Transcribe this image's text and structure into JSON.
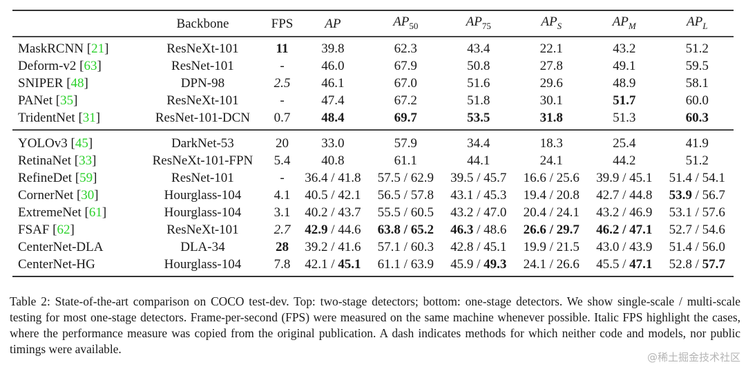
{
  "table": {
    "headers": [
      {
        "text": ""
      },
      {
        "text": "Backbone"
      },
      {
        "text": "FPS"
      },
      {
        "base": "AP"
      },
      {
        "base": "AP",
        "sub": "50",
        "sub_italic": false
      },
      {
        "base": "AP",
        "sub": "75",
        "sub_italic": false
      },
      {
        "base": "AP",
        "sub": "S",
        "sub_italic": true
      },
      {
        "base": "AP",
        "sub": "M",
        "sub_italic": true
      },
      {
        "base": "AP",
        "sub": "L",
        "sub_italic": true
      }
    ],
    "groups": [
      {
        "name": "two-stage",
        "rows": [
          {
            "method": "MaskRCNN",
            "ref": "21",
            "backbone": "ResNeXt-101",
            "fps": {
              "t": "11",
              "b": true
            },
            "cells": [
              [
                {
                  "t": "39.8"
                }
              ],
              [
                {
                  "t": "62.3"
                }
              ],
              [
                {
                  "t": "43.4"
                }
              ],
              [
                {
                  "t": "22.1"
                }
              ],
              [
                {
                  "t": "43.2"
                }
              ],
              [
                {
                  "t": "51.2"
                }
              ]
            ]
          },
          {
            "method": "Deform-v2",
            "ref": "63",
            "backbone": "ResNet-101",
            "fps": {
              "t": "-"
            },
            "cells": [
              [
                {
                  "t": "46.0"
                }
              ],
              [
                {
                  "t": "67.9"
                }
              ],
              [
                {
                  "t": "50.8"
                }
              ],
              [
                {
                  "t": "27.8"
                }
              ],
              [
                {
                  "t": "49.1"
                }
              ],
              [
                {
                  "t": "59.5"
                }
              ]
            ]
          },
          {
            "method": "SNIPER",
            "ref": "48",
            "backbone": "DPN-98",
            "fps": {
              "t": "2.5",
              "i": true
            },
            "cells": [
              [
                {
                  "t": "46.1"
                }
              ],
              [
                {
                  "t": "67.0"
                }
              ],
              [
                {
                  "t": "51.6"
                }
              ],
              [
                {
                  "t": "29.6"
                }
              ],
              [
                {
                  "t": "48.9"
                }
              ],
              [
                {
                  "t": "58.1"
                }
              ]
            ]
          },
          {
            "method": "PANet",
            "ref": "35",
            "backbone": "ResNeXt-101",
            "fps": {
              "t": "-"
            },
            "cells": [
              [
                {
                  "t": "47.4"
                }
              ],
              [
                {
                  "t": "67.2"
                }
              ],
              [
                {
                  "t": "51.8"
                }
              ],
              [
                {
                  "t": "30.1"
                }
              ],
              [
                {
                  "t": "51.7",
                  "b": true
                }
              ],
              [
                {
                  "t": "60.0"
                }
              ]
            ]
          },
          {
            "method": "TridentNet",
            "ref": "31",
            "backbone": "ResNet-101-DCN",
            "fps": {
              "t": "0.7"
            },
            "cells": [
              [
                {
                  "t": "48.4",
                  "b": true
                }
              ],
              [
                {
                  "t": "69.7",
                  "b": true
                }
              ],
              [
                {
                  "t": "53.5",
                  "b": true
                }
              ],
              [
                {
                  "t": "31.8",
                  "b": true
                }
              ],
              [
                {
                  "t": "51.3"
                }
              ],
              [
                {
                  "t": "60.3",
                  "b": true
                }
              ]
            ]
          }
        ]
      },
      {
        "name": "one-stage",
        "rows": [
          {
            "method": "YOLOv3",
            "ref": "45",
            "backbone": "DarkNet-53",
            "fps": {
              "t": "20"
            },
            "cells": [
              [
                {
                  "t": "33.0"
                }
              ],
              [
                {
                  "t": "57.9"
                }
              ],
              [
                {
                  "t": "34.4"
                }
              ],
              [
                {
                  "t": "18.3"
                }
              ],
              [
                {
                  "t": "25.4"
                }
              ],
              [
                {
                  "t": "41.9"
                }
              ]
            ]
          },
          {
            "method": "RetinaNet",
            "ref": "33",
            "backbone": "ResNeXt-101-FPN",
            "fps": {
              "t": "5.4"
            },
            "cells": [
              [
                {
                  "t": "40.8"
                }
              ],
              [
                {
                  "t": "61.1"
                }
              ],
              [
                {
                  "t": "44.1"
                }
              ],
              [
                {
                  "t": "24.1"
                }
              ],
              [
                {
                  "t": "44.2"
                }
              ],
              [
                {
                  "t": "51.2"
                }
              ]
            ]
          },
          {
            "method": "RefineDet",
            "ref": "59",
            "backbone": "ResNet-101",
            "fps": {
              "t": "-"
            },
            "cells": [
              [
                {
                  "t": "36.4"
                },
                {
                  "t": "41.8"
                }
              ],
              [
                {
                  "t": "57.5"
                },
                {
                  "t": "62.9"
                }
              ],
              [
                {
                  "t": "39.5"
                },
                {
                  "t": "45.7"
                }
              ],
              [
                {
                  "t": "16.6"
                },
                {
                  "t": "25.6"
                }
              ],
              [
                {
                  "t": "39.9"
                },
                {
                  "t": "45.1"
                }
              ],
              [
                {
                  "t": "51.4"
                },
                {
                  "t": "54.1"
                }
              ]
            ]
          },
          {
            "method": "CornerNet",
            "ref": "30",
            "backbone": "Hourglass-104",
            "fps": {
              "t": "4.1"
            },
            "cells": [
              [
                {
                  "t": "40.5"
                },
                {
                  "t": "42.1"
                }
              ],
              [
                {
                  "t": "56.5"
                },
                {
                  "t": "57.8"
                }
              ],
              [
                {
                  "t": "43.1"
                },
                {
                  "t": "45.3"
                }
              ],
              [
                {
                  "t": "19.4"
                },
                {
                  "t": "20.8"
                }
              ],
              [
                {
                  "t": "42.7"
                },
                {
                  "t": "44.8"
                }
              ],
              [
                {
                  "t": "53.9",
                  "b": true
                },
                {
                  "t": "56.7"
                }
              ]
            ]
          },
          {
            "method": "ExtremeNet",
            "ref": "61",
            "backbone": "Hourglass-104",
            "fps": {
              "t": "3.1"
            },
            "cells": [
              [
                {
                  "t": "40.2"
                },
                {
                  "t": "43.7"
                }
              ],
              [
                {
                  "t": "55.5"
                },
                {
                  "t": "60.5"
                }
              ],
              [
                {
                  "t": "43.2"
                },
                {
                  "t": "47.0"
                }
              ],
              [
                {
                  "t": "20.4"
                },
                {
                  "t": "24.1"
                }
              ],
              [
                {
                  "t": "43.2"
                },
                {
                  "t": "46.9"
                }
              ],
              [
                {
                  "t": "53.1"
                },
                {
                  "t": "57.6"
                }
              ]
            ]
          },
          {
            "method": "FSAF",
            "ref": "62",
            "backbone": "ResNeXt-101",
            "fps": {
              "t": "2.7",
              "i": true
            },
            "cells": [
              [
                {
                  "t": "42.9",
                  "b": true
                },
                {
                  "t": "44.6"
                }
              ],
              [
                {
                  "t": "63.8",
                  "b": true
                },
                {
                  "t": "65.2",
                  "b": true
                }
              ],
              [
                {
                  "t": "46.3",
                  "b": true
                },
                {
                  "t": "48.6"
                }
              ],
              [
                {
                  "t": "26.6",
                  "b": true
                },
                {
                  "t": "29.7",
                  "b": true
                }
              ],
              [
                {
                  "t": "46.2",
                  "b": true
                },
                {
                  "t": "47.1",
                  "b": true
                }
              ],
              [
                {
                  "t": "52.7"
                },
                {
                  "t": "54.6"
                }
              ]
            ]
          },
          {
            "method": "CenterNet-DLA",
            "backbone": "DLA-34",
            "fps": {
              "t": "28",
              "b": true
            },
            "cells": [
              [
                {
                  "t": "39.2"
                },
                {
                  "t": "41.6"
                }
              ],
              [
                {
                  "t": "57.1"
                },
                {
                  "t": "60.3"
                }
              ],
              [
                {
                  "t": "42.8"
                },
                {
                  "t": "45.1"
                }
              ],
              [
                {
                  "t": "19.9"
                },
                {
                  "t": "21.5"
                }
              ],
              [
                {
                  "t": "43.0"
                },
                {
                  "t": "43.9"
                }
              ],
              [
                {
                  "t": "51.4"
                },
                {
                  "t": "56.0"
                }
              ]
            ]
          },
          {
            "method": "CenterNet-HG",
            "backbone": "Hourglass-104",
            "fps": {
              "t": "7.8"
            },
            "cells": [
              [
                {
                  "t": "42.1"
                },
                {
                  "t": "45.1",
                  "b": true
                }
              ],
              [
                {
                  "t": "61.1"
                },
                {
                  "t": "63.9"
                }
              ],
              [
                {
                  "t": "45.9"
                },
                {
                  "t": "49.3",
                  "b": true
                }
              ],
              [
                {
                  "t": "24.1"
                },
                {
                  "t": "26.6"
                }
              ],
              [
                {
                  "t": "45.5"
                },
                {
                  "t": "47.1",
                  "b": true
                }
              ],
              [
                {
                  "t": "52.8"
                },
                {
                  "t": "57.7",
                  "b": true
                }
              ]
            ]
          }
        ]
      }
    ]
  },
  "caption": "Table 2: State-of-the-art comparison on COCO test-dev. Top: two-stage detectors; bottom: one-stage detectors. We show single-scale / multi-scale testing for most one-stage detectors. Frame-per-second (FPS) were measured on the same machine whenever possible. Italic FPS highlight the cases, where the performance measure was copied from the original publication. A dash indicates methods for which neither code and models, nor public timings were available.",
  "watermark": "@稀土掘金技术社区",
  "colors": {
    "citation": "#2bd12b",
    "text": "#1a1a1a"
  }
}
